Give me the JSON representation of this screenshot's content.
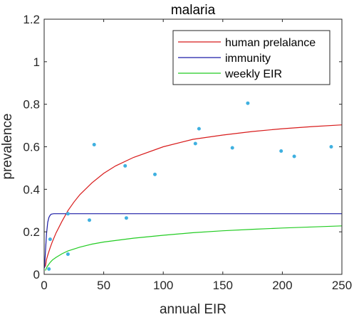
{
  "chart_data": {
    "type": "line",
    "title": "malaria",
    "xlabel": "annual EIR",
    "ylabel": "prevalence",
    "xlim": [
      0,
      250
    ],
    "ylim": [
      0,
      1.2
    ],
    "xticks": [
      0,
      50,
      100,
      150,
      200,
      250
    ],
    "yticks": [
      0,
      0.2,
      0.4,
      0.6,
      0.8,
      1.0,
      1.2
    ],
    "ytick_labels": [
      "0",
      "0.2",
      "0.4",
      "0.6",
      "0.8",
      "1",
      "1.2"
    ],
    "grid": false,
    "legend_position": "top-right",
    "series": [
      {
        "name": "human prelalance",
        "color": "#d81b1b",
        "x": [
          1,
          2,
          3,
          5,
          7,
          10,
          15,
          20,
          25,
          30,
          40,
          50,
          60,
          75,
          100,
          125,
          150,
          175,
          200,
          225,
          250
        ],
        "y": [
          0.036,
          0.07,
          0.09,
          0.125,
          0.155,
          0.195,
          0.25,
          0.3,
          0.34,
          0.375,
          0.43,
          0.475,
          0.51,
          0.55,
          0.6,
          0.635,
          0.655,
          0.672,
          0.685,
          0.695,
          0.703
        ]
      },
      {
        "name": "immunity",
        "color": "#1c1ca6",
        "x": [
          0.3,
          1,
          2,
          3,
          4,
          5,
          6,
          8,
          10,
          20,
          50,
          100,
          150,
          200,
          250
        ],
        "y": [
          0.03,
          0.1,
          0.19,
          0.245,
          0.268,
          0.278,
          0.283,
          0.285,
          0.285,
          0.285,
          0.285,
          0.285,
          0.285,
          0.285,
          0.285
        ]
      },
      {
        "name": "weekly EIR",
        "color": "#22cc22",
        "x": [
          1,
          2,
          3,
          5,
          7,
          10,
          15,
          20,
          30,
          40,
          50,
          75,
          100,
          125,
          150,
          175,
          200,
          225,
          250
        ],
        "y": [
          0.018,
          0.03,
          0.04,
          0.056,
          0.068,
          0.08,
          0.097,
          0.11,
          0.128,
          0.142,
          0.152,
          0.17,
          0.184,
          0.196,
          0.205,
          0.212,
          0.218,
          0.223,
          0.228
        ]
      }
    ],
    "scatter": {
      "color": "#3fb0e0",
      "x": [
        4,
        5,
        20,
        20,
        38,
        42,
        68,
        69,
        93,
        127,
        130,
        158,
        171,
        199,
        210,
        241
      ],
      "y": [
        0.025,
        0.165,
        0.285,
        0.095,
        0.255,
        0.61,
        0.51,
        0.265,
        0.47,
        0.615,
        0.685,
        0.595,
        0.805,
        0.58,
        0.555,
        0.6
      ]
    }
  }
}
